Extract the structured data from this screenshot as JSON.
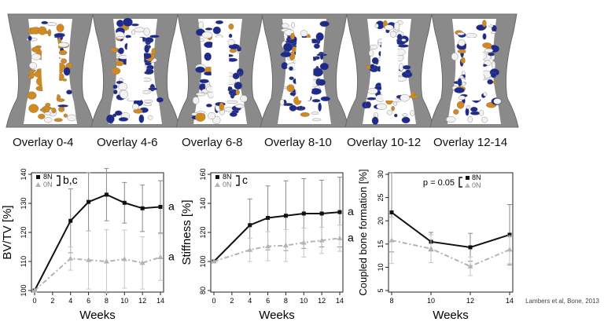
{
  "overlays": {
    "captions": [
      "Overlay 0-4",
      "Overlay 4-6",
      "Overlay 6-8",
      "Overlay 8-10",
      "Overlay 10-12",
      "Overlay 12-14"
    ],
    "colors": {
      "bone": "#8a8a8a",
      "formation": "#d28a1e",
      "resorption": "#1d2a8c",
      "quiescent": "#f2f2f2"
    }
  },
  "chart_data": [
    {
      "type": "line",
      "xlabel": "Weeks",
      "ylabel": "BV/TV [%]",
      "xlim": [
        0,
        14
      ],
      "ylim": [
        100,
        140
      ],
      "xticks": [
        0,
        2,
        4,
        6,
        8,
        10,
        12,
        14
      ],
      "yticks": [
        100,
        110,
        120,
        130,
        140
      ],
      "x": [
        0,
        4,
        6,
        8,
        10,
        12,
        14
      ],
      "series": [
        {
          "name": "8N",
          "color": "#111111",
          "values": [
            100,
            124,
            130.5,
            133,
            130.2,
            128.3,
            128.8
          ],
          "err": [
            0,
            11,
            10,
            9,
            7,
            8,
            9
          ],
          "dashed": false
        },
        {
          "name": "0N",
          "color": "#b3b3b3",
          "values": [
            100,
            111,
            110.5,
            110,
            110.8,
            109.5,
            111.5
          ],
          "err": [
            0,
            4,
            10,
            11,
            10,
            9,
            8
          ],
          "dashed": true
        }
      ],
      "bracket_label": "b,c",
      "end_labels": [
        "a",
        "a"
      ]
    },
    {
      "type": "line",
      "xlabel": "Weeks",
      "ylabel": "Stiffness [%]",
      "xlim": [
        0,
        14
      ],
      "ylim": [
        80,
        160
      ],
      "xticks": [
        0,
        2,
        4,
        6,
        8,
        10,
        12,
        14
      ],
      "yticks": [
        80,
        100,
        120,
        140,
        160
      ],
      "x": [
        0,
        4,
        6,
        8,
        10,
        12,
        14
      ],
      "series": [
        {
          "name": "8N",
          "color": "#111111",
          "values": [
            100,
            125,
            130,
            131.5,
            133,
            133,
            134
          ],
          "err": [
            0,
            18,
            22,
            24,
            24,
            23,
            24
          ],
          "dashed": false
        },
        {
          "name": "0N",
          "color": "#b3b3b3",
          "values": [
            100,
            108,
            110.5,
            111,
            113,
            114.5,
            116
          ],
          "err": [
            0,
            8,
            10,
            11,
            10,
            9,
            9
          ],
          "dashed": true
        }
      ],
      "bracket_label": "c",
      "end_labels": [
        "a",
        "a"
      ]
    },
    {
      "type": "line",
      "xlabel": "Weeks",
      "ylabel": "Coupled bone formation [%]",
      "xlim": [
        8,
        14
      ],
      "ylim": [
        5,
        30
      ],
      "xticks": [
        8,
        10,
        12,
        14
      ],
      "yticks": [
        5,
        10,
        15,
        20,
        25,
        30
      ],
      "x": [
        8,
        10,
        12,
        14
      ],
      "series": [
        {
          "name": "8N",
          "color": "#111111",
          "values": [
            21.8,
            15.5,
            14.3,
            17
          ],
          "err": [
            8.5,
            2,
            3,
            6.5
          ],
          "dashed": false
        },
        {
          "name": "0N",
          "color": "#b3b3b3",
          "values": [
            15.8,
            14,
            10.2,
            13.8
          ],
          "err": [
            5,
            3,
            2,
            3
          ],
          "dashed": true
        }
      ],
      "pvalue": "p = 0.05"
    }
  ],
  "credit": "Lambers et al, Bone, 2013"
}
